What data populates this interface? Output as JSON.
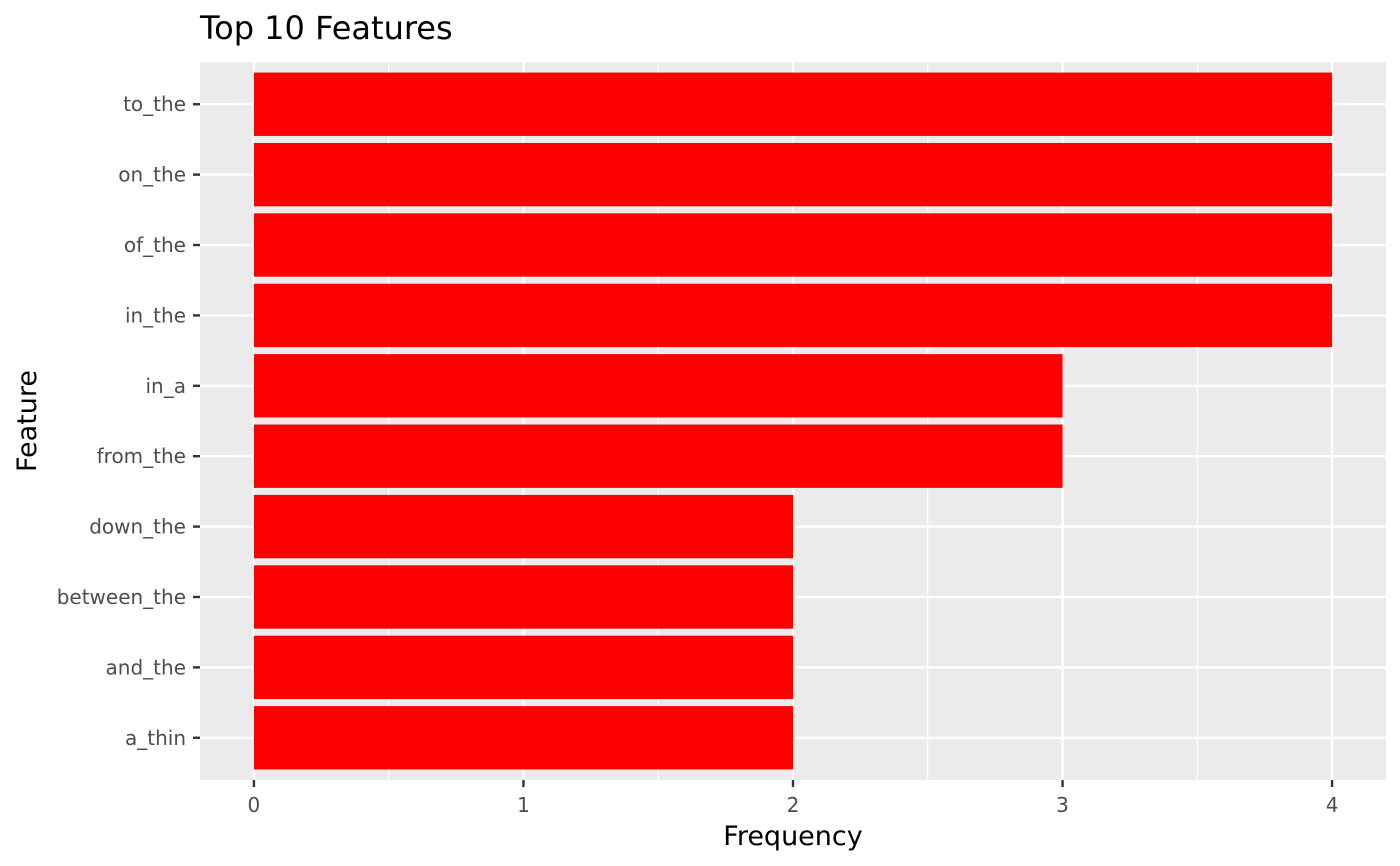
{
  "chart_data": {
    "type": "bar",
    "orientation": "horizontal",
    "title": "Top 10 Features",
    "xlabel": "Frequency",
    "ylabel": "Feature",
    "categories": [
      "to_the",
      "on_the",
      "of_the",
      "in_the",
      "in_a",
      "from_the",
      "down_the",
      "between_the",
      "and_the",
      "a_thin"
    ],
    "values": [
      4,
      4,
      4,
      4,
      3,
      3,
      2,
      2,
      2,
      2
    ],
    "xlim": [
      -0.2,
      4.2
    ],
    "xticks": [
      "0",
      "1",
      "2",
      "3",
      "4"
    ],
    "grid": true,
    "colors": {
      "bar": "#ff0000",
      "panel": "#ebebeb",
      "grid": "#ffffff",
      "tick_label": "#4d4d4d",
      "tick_mark": "#333333",
      "text": "#000000"
    }
  }
}
